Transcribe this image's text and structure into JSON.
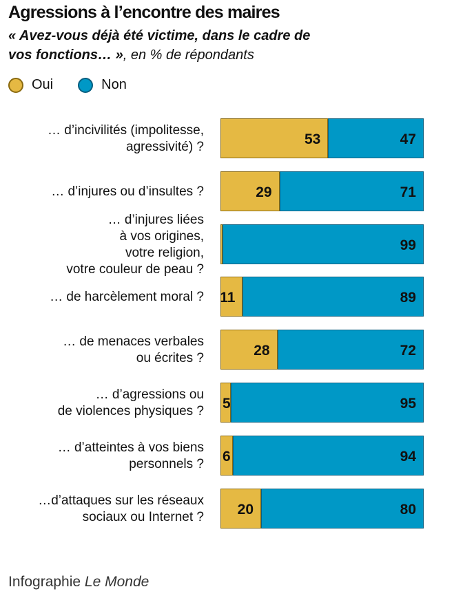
{
  "chart_data": {
    "type": "bar",
    "orientation": "horizontal-stacked",
    "title": "Agressions à l’encontre des maires",
    "subtitle_bold": "« Avez-vous déjà été victime, dans le cadre de vos fonctions… »",
    "subtitle_rest": ", en % de répondants",
    "categories": [
      "… d’incivilités (impolitesse,\nagressivité) ?",
      "… d’injures ou d’insultes ?",
      "… d’injures liées\nà vos origines,\nvotre religion,\nvotre couleur de peau ?",
      "… de harcèlement moral ?",
      "… de menaces verbales\nou écrites ?",
      "… d’agressions ou\nde violences physiques ?",
      "… d’atteintes à vos biens\npersonnels ?",
      "…d’attaques sur les réseaux\nsociaux ou Internet ?"
    ],
    "series": [
      {
        "name": "Oui",
        "color": "#e5b943",
        "border": "#8a6a10",
        "values": [
          53,
          29,
          1,
          11,
          28,
          5,
          6,
          20
        ]
      },
      {
        "name": "Non",
        "color": "#0098c6",
        "border": "#0a5f80",
        "values": [
          47,
          71,
          99,
          89,
          72,
          95,
          94,
          80
        ]
      }
    ],
    "xlim": [
      0,
      100
    ],
    "legend": "top-left"
  },
  "footer": {
    "prefix": "Infographie ",
    "brand": "Le Monde"
  }
}
